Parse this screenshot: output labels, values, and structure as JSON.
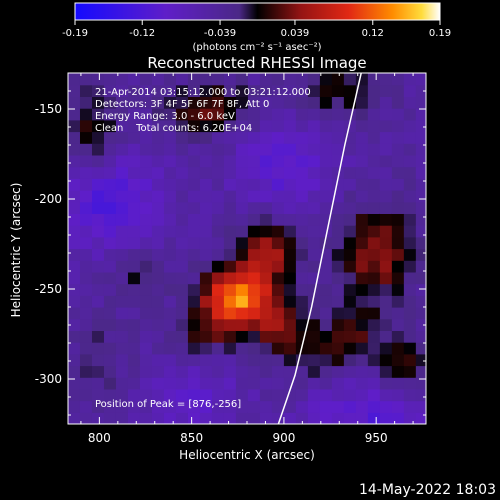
{
  "chart_data": {
    "type": "heatmap",
    "title": "Reconstructed RHESSI Image",
    "xlabel": "Heliocentric X (arcsec)",
    "ylabel": "Heliocentric Y (arcsec)",
    "xlim": [
      783,
      977
    ],
    "ylim": [
      -325,
      -130
    ],
    "xticks": [
      800,
      850,
      900,
      950
    ],
    "yticks": [
      -150,
      -200,
      -250,
      -300
    ],
    "colorbar": {
      "min": -0.19,
      "max": 0.19,
      "ticks": [
        -0.19,
        -0.12,
        -0.039,
        0.039,
        0.12,
        0.19
      ],
      "tick_labels": [
        "-0.19",
        "-0.12",
        "-0.039",
        "0.039",
        "0.12",
        "0.19"
      ],
      "unit_label": "(photons cm⁻² s⁻¹ asec⁻²)"
    },
    "info_lines": [
      "21-Apr-2014 03:15:12.000 to 03:21:12.000",
      "Detectors: 3F 4F 5F 6F 7F 8F, Att 0",
      "Energy Range: 3.0 - 6.0 keV",
      "Clean    Total counts: 6.20E+04"
    ],
    "peak_label": "Position of Peak = [876,-256]",
    "peak": [
      876,
      -256
    ],
    "limb_points": [
      [
        943,
        -125
      ],
      [
        933,
        -170
      ],
      [
        924,
        -215
      ],
      [
        915,
        -260
      ],
      [
        906,
        -298
      ],
      [
        897,
        -325
      ]
    ],
    "blobs": [
      {
        "x": 876,
        "y": -254,
        "amp": 0.19,
        "sx": 13,
        "sy": 11
      },
      {
        "x": 892,
        "y": -228,
        "amp": 0.1,
        "sx": 12,
        "sy": 11
      },
      {
        "x": 898,
        "y": -272,
        "amp": 0.08,
        "sx": 10,
        "sy": 10
      },
      {
        "x": 858,
        "y": -273,
        "amp": 0.06,
        "sx": 11,
        "sy": 10
      },
      {
        "x": 795,
        "y": -167,
        "amp": 0.06,
        "sx": 12,
        "sy": 18
      },
      {
        "x": 860,
        "y": -150,
        "amp": 0.07,
        "sx": 18,
        "sy": 10
      },
      {
        "x": 930,
        "y": -140,
        "amp": 0.05,
        "sx": 16,
        "sy": 10
      },
      {
        "x": 822,
        "y": -240,
        "amp": 0.04,
        "sx": 10,
        "sy": 10
      },
      {
        "x": 920,
        "y": -285,
        "amp": 0.05,
        "sx": 10,
        "sy": 11
      },
      {
        "x": 950,
        "y": -230,
        "amp": 0.09,
        "sx": 14,
        "sy": 18
      },
      {
        "x": 940,
        "y": -275,
        "amp": 0.05,
        "sx": 10,
        "sy": 11
      },
      {
        "x": 965,
        "y": -290,
        "amp": 0.06,
        "sx": 10,
        "sy": 10
      },
      {
        "x": 800,
        "y": -290,
        "amp": 0.03,
        "sx": 10,
        "sy": 14
      },
      {
        "x": 805,
        "y": -200,
        "amp": -0.08,
        "sx": 20,
        "sy": 20
      },
      {
        "x": 900,
        "y": -180,
        "amp": -0.06,
        "sx": 20,
        "sy": 18
      },
      {
        "x": 945,
        "y": -320,
        "amp": -0.06,
        "sx": 25,
        "sy": 14
      },
      {
        "x": 850,
        "y": -310,
        "amp": -0.05,
        "sx": 18,
        "sy": 14
      }
    ]
  },
  "footer": {
    "date": "14-May-2022 18:03"
  }
}
